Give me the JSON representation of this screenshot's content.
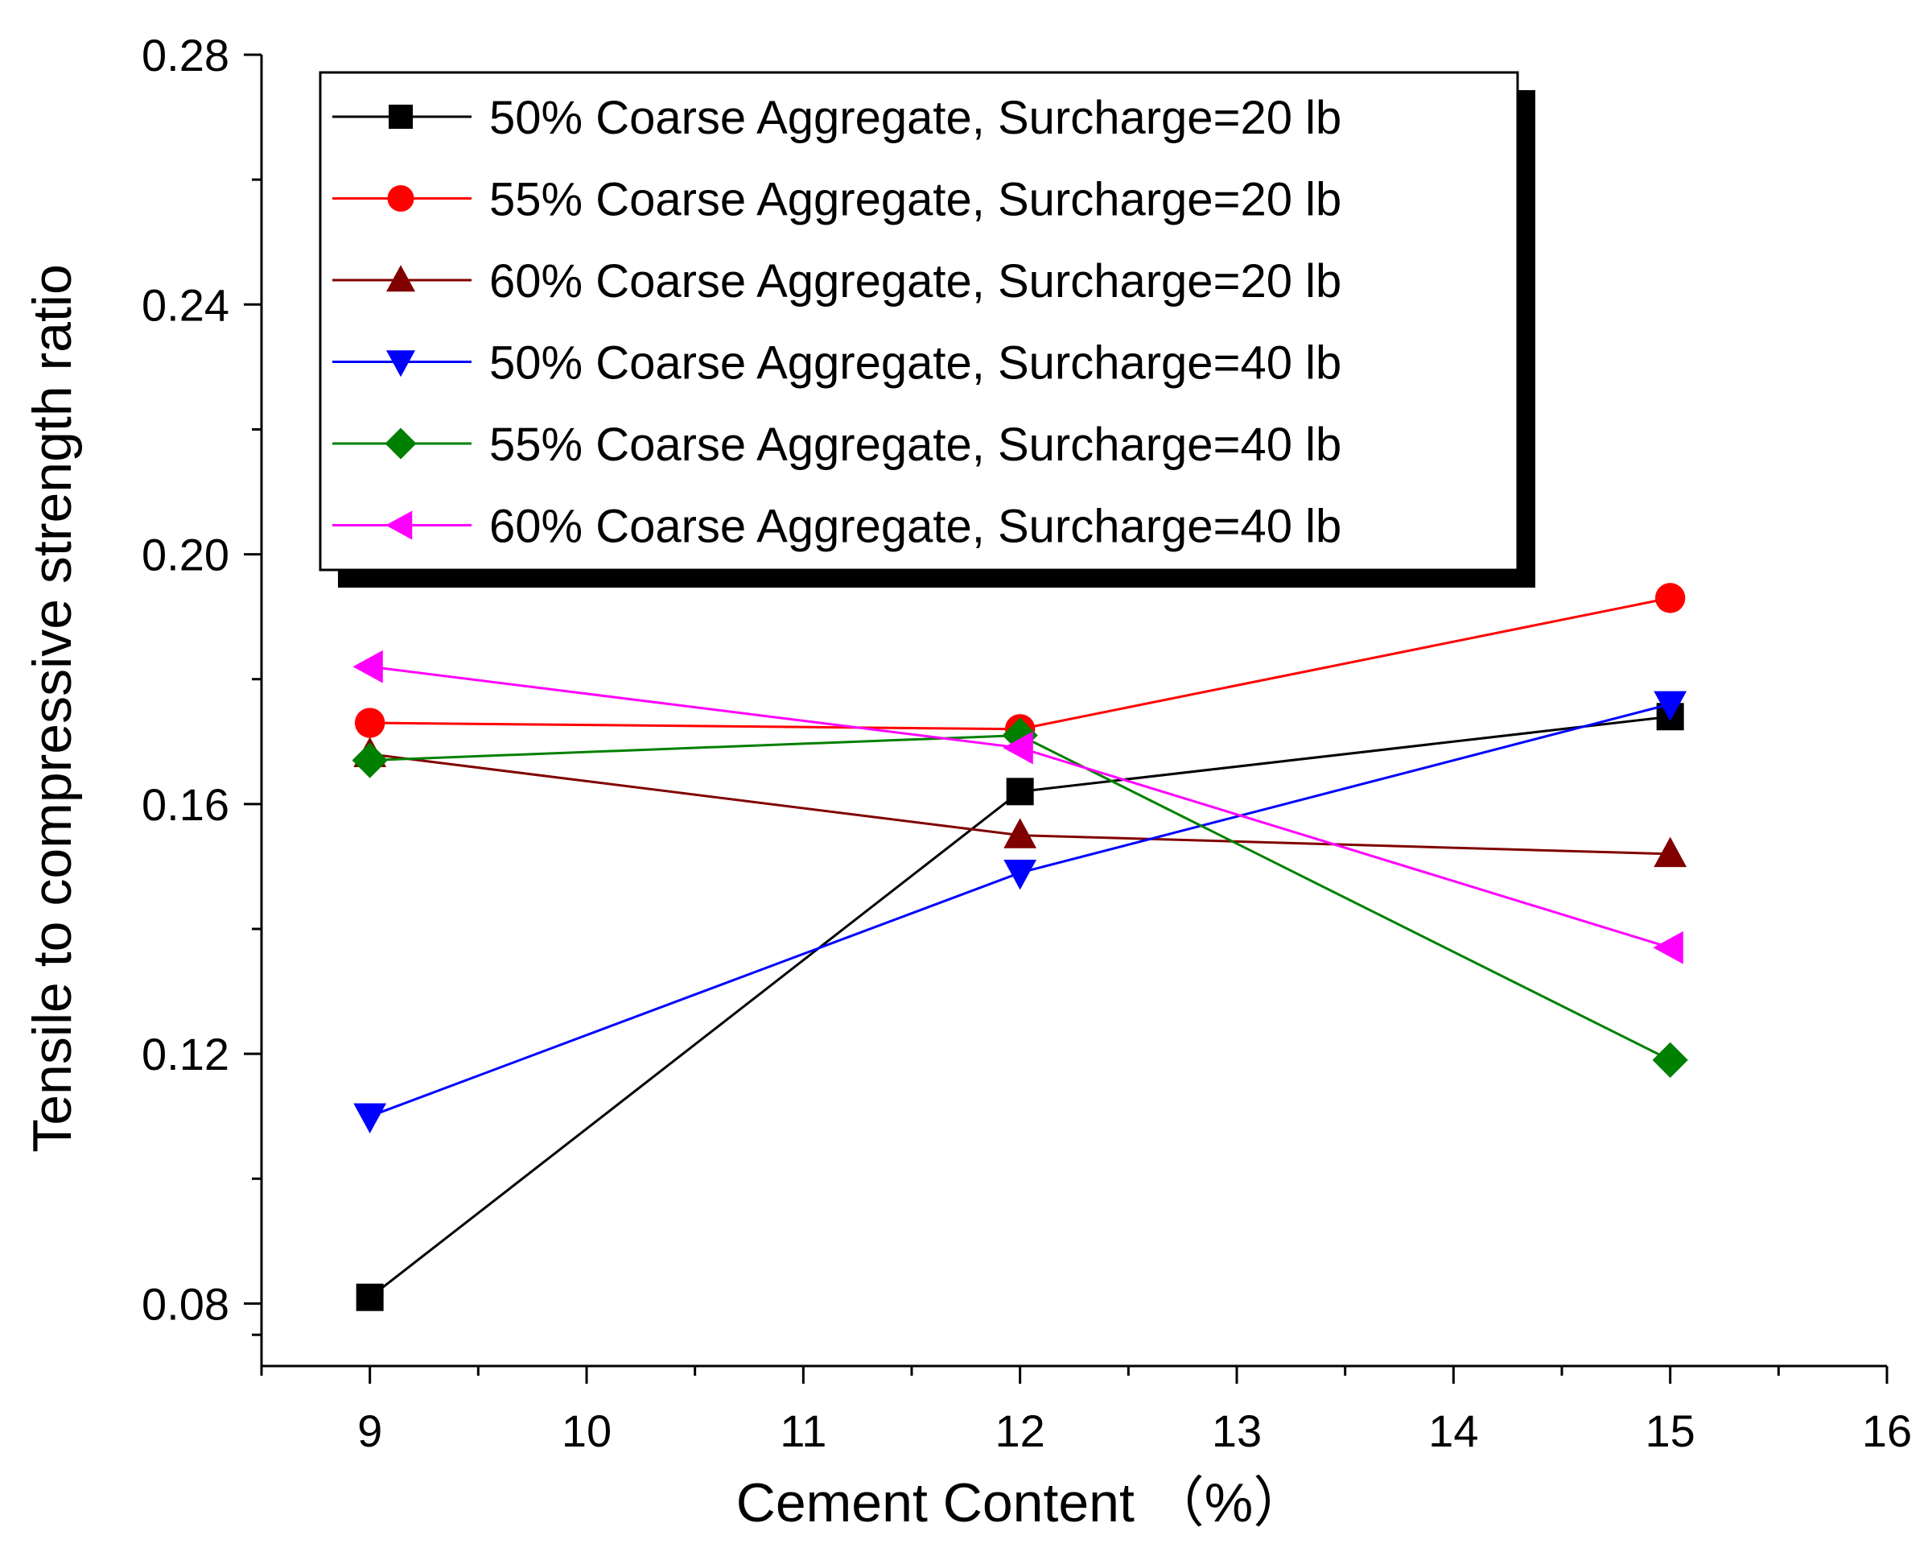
{
  "chart_data": {
    "type": "line",
    "title": "",
    "xlabel": "Cement Content （%）",
    "ylabel": "Tensile to compressive strength ratio",
    "xlim": [
      8.5,
      16
    ],
    "ylim": [
      0.07,
      0.28
    ],
    "xticks": [
      9,
      10,
      11,
      12,
      13,
      14,
      15,
      16
    ],
    "xtick_labels": [
      "9",
      "10",
      "11",
      "12",
      "13",
      "14",
      "15",
      "16"
    ],
    "yticks": [
      0.08,
      0.12,
      0.16,
      0.2,
      0.24,
      0.28
    ],
    "ytick_labels": [
      "0.08",
      "0.12",
      "0.16",
      "0.20",
      "0.24",
      "0.28"
    ],
    "legend_position": "top-left",
    "grid": false,
    "x": [
      9,
      12,
      15
    ],
    "series": [
      {
        "name": "50% Coarse Aggregate, Surcharge=20 lb",
        "color": "#000000",
        "marker": "square",
        "values": [
          0.081,
          0.162,
          0.174
        ]
      },
      {
        "name": "55% Coarse Aggregate, Surcharge=20 lb",
        "color": "#ff0000",
        "marker": "circle",
        "values": [
          0.173,
          0.172,
          0.193
        ]
      },
      {
        "name": "60% Coarse Aggregate, Surcharge=20 lb",
        "color": "#800000",
        "marker": "triangle-up",
        "values": [
          0.168,
          0.155,
          0.152
        ]
      },
      {
        "name": "50% Coarse Aggregate, Surcharge=40 lb",
        "color": "#0000ff",
        "marker": "triangle-down",
        "values": [
          0.11,
          0.149,
          0.176
        ]
      },
      {
        "name": "55% Coarse Aggregate, Surcharge=40 lb",
        "color": "#008000",
        "marker": "diamond",
        "values": [
          0.167,
          0.171,
          0.119
        ]
      },
      {
        "name": "60% Coarse Aggregate, Surcharge=40 lb",
        "color": "#ff00ff",
        "marker": "triangle-left",
        "values": [
          0.182,
          0.169,
          0.137
        ]
      }
    ]
  }
}
